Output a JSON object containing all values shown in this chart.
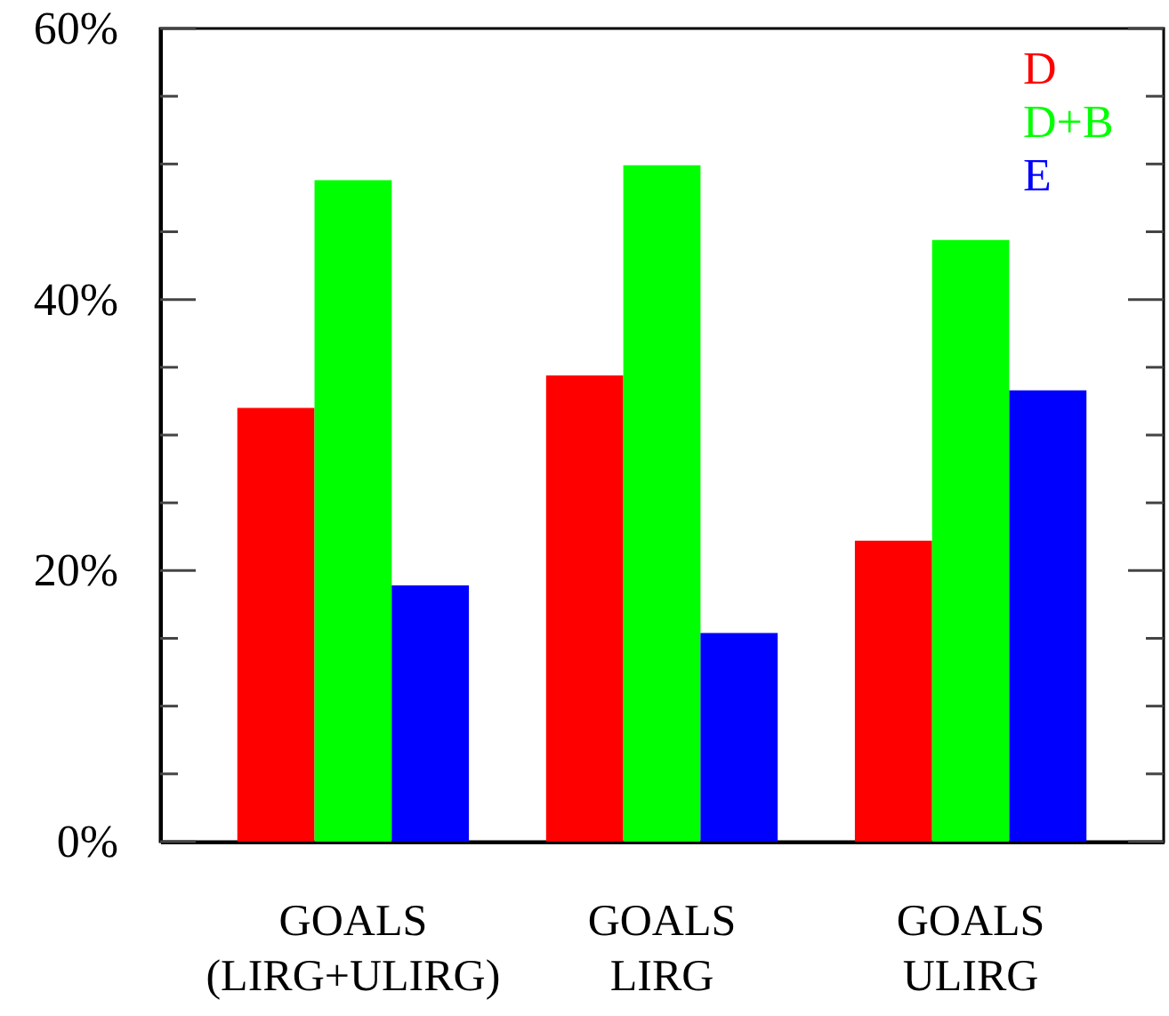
{
  "chart_data": {
    "type": "bar",
    "categories": [
      "GOALS\n(LIRG+ULIRG)",
      "GOALS\nLIRG",
      "GOALS\nULIRG"
    ],
    "series": [
      {
        "name": "D",
        "color": "#ff0000",
        "values": [
          32.0,
          34.4,
          22.2
        ]
      },
      {
        "name": "D+B",
        "color": "#00ff00",
        "values": [
          48.8,
          49.9,
          44.4
        ]
      },
      {
        "name": "E",
        "color": "#0000ff",
        "values": [
          18.9,
          15.4,
          33.3
        ]
      }
    ],
    "ylim": [
      0,
      60
    ],
    "yticks": [
      {
        "value": 0,
        "label": "0%"
      },
      {
        "value": 5,
        "label": null
      },
      {
        "value": 10,
        "label": null
      },
      {
        "value": 15,
        "label": null
      },
      {
        "value": 20,
        "label": "20%"
      },
      {
        "value": 25,
        "label": null
      },
      {
        "value": 30,
        "label": null
      },
      {
        "value": 35,
        "label": null
      },
      {
        "value": 40,
        "label": "40%"
      },
      {
        "value": 45,
        "label": null
      },
      {
        "value": 50,
        "label": null
      },
      {
        "value": 55,
        "label": null
      },
      {
        "value": 60,
        "label": "60%"
      }
    ],
    "legend": "top right"
  }
}
